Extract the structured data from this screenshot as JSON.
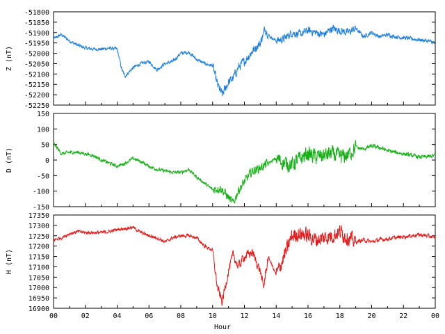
{
  "chart_data": [
    {
      "type": "line",
      "ylabel": "Z (nT)",
      "ylim": [
        -52250,
        -51800
      ],
      "yticks": [
        -51800,
        -51850,
        -51900,
        -51950,
        -52000,
        -52050,
        -52100,
        -52150,
        -52200,
        -52250
      ],
      "xlim": [
        0,
        24
      ],
      "series": [
        {
          "color": "#1e7fe0",
          "x": [
            0,
            0.5,
            1,
            1.5,
            2,
            2.5,
            3,
            3.5,
            4,
            4.3,
            4.5,
            5,
            5.5,
            6,
            6.5,
            7,
            7.5,
            8,
            8.5,
            9,
            9.5,
            10,
            10.3,
            10.6,
            11,
            11.3,
            11.6,
            12,
            12.5,
            13,
            13.3,
            13.6,
            14,
            14.5,
            15,
            15.5,
            16,
            16.5,
            17,
            17.5,
            18,
            18.5,
            19,
            19.5,
            20,
            20.5,
            21,
            21.5,
            22,
            22.5,
            23,
            23.5,
            24
          ],
          "y": [
            -51930,
            -51910,
            -51940,
            -51960,
            -51975,
            -51980,
            -51980,
            -51975,
            -51980,
            -52080,
            -52110,
            -52070,
            -52050,
            -52040,
            -52080,
            -52050,
            -52040,
            -52000,
            -51995,
            -52030,
            -52050,
            -52060,
            -52150,
            -52200,
            -52140,
            -52120,
            -52070,
            -52040,
            -51990,
            -51950,
            -51880,
            -51920,
            -51940,
            -51930,
            -51900,
            -51910,
            -51890,
            -51900,
            -51910,
            -51880,
            -51890,
            -51900,
            -51880,
            -51920,
            -51900,
            -51920,
            -51910,
            -51920,
            -51925,
            -51930,
            -51935,
            -51940,
            -51950
          ]
        }
      ]
    },
    {
      "type": "line",
      "ylabel": "D (nT)",
      "ylim": [
        -150,
        150
      ],
      "yticks": [
        150,
        100,
        50,
        0,
        -50,
        -100,
        -150
      ],
      "xlim": [
        0,
        24
      ],
      "series": [
        {
          "color": "#16b016",
          "x": [
            0,
            0.5,
            1,
            1.5,
            2,
            2.5,
            3,
            3.5,
            4,
            4.5,
            5,
            5.5,
            6,
            6.5,
            7,
            7.5,
            8,
            8.5,
            9,
            9.5,
            10,
            10.5,
            11,
            11.3,
            11.6,
            12,
            12.5,
            13,
            13.5,
            14,
            14.5,
            15,
            15.5,
            16,
            16.5,
            17,
            17.5,
            18,
            18.5,
            19,
            19.5,
            20,
            20.5,
            21,
            21.5,
            22,
            22.5,
            23,
            23.5,
            24
          ],
          "y": [
            55,
            20,
            25,
            25,
            20,
            15,
            0,
            -10,
            -20,
            -10,
            5,
            -5,
            -20,
            -30,
            -35,
            -40,
            -40,
            -30,
            -55,
            -75,
            -95,
            -90,
            -120,
            -140,
            -100,
            -70,
            -35,
            -25,
            -10,
            5,
            -10,
            -15,
            5,
            20,
            10,
            15,
            20,
            10,
            15,
            40,
            35,
            45,
            40,
            30,
            25,
            20,
            15,
            10,
            10,
            15
          ]
        }
      ]
    },
    {
      "type": "line",
      "ylabel": "H (nT)",
      "ylim": [
        16900,
        17350
      ],
      "yticks": [
        17350,
        17300,
        17250,
        17200,
        17150,
        17100,
        17050,
        17000,
        16950,
        16900
      ],
      "xlim": [
        0,
        24
      ],
      "xticks": [
        "00",
        "02",
        "04",
        "06",
        "08",
        "10",
        "12",
        "14",
        "16",
        "18",
        "20",
        "22",
        "00"
      ],
      "xlabel": "Hour",
      "series": [
        {
          "color": "#e81818",
          "x": [
            0,
            0.5,
            1,
            1.5,
            2,
            2.5,
            3,
            3.5,
            4,
            4.5,
            5,
            5.5,
            6,
            6.5,
            7,
            7.5,
            8,
            8.5,
            9,
            9.5,
            10,
            10.3,
            10.6,
            11,
            11.3,
            11.6,
            12,
            12.5,
            13,
            13.2,
            13.5,
            14,
            14.5,
            15,
            15.5,
            16,
            16.5,
            17,
            17.5,
            18,
            18.5,
            19,
            19.5,
            20,
            20.5,
            21,
            21.5,
            22,
            22.5,
            23,
            23.5,
            24
          ],
          "y": [
            17230,
            17240,
            17260,
            17270,
            17265,
            17265,
            17265,
            17270,
            17280,
            17285,
            17290,
            17265,
            17250,
            17240,
            17220,
            17240,
            17250,
            17250,
            17240,
            17200,
            17180,
            17000,
            16930,
            17080,
            17160,
            17100,
            17150,
            17170,
            17080,
            17000,
            17150,
            17060,
            17150,
            17250,
            17260,
            17250,
            17230,
            17240,
            17250,
            17270,
            17240,
            17220,
            17230,
            17220,
            17230,
            17235,
            17240,
            17245,
            17250,
            17255,
            17250,
            17240
          ]
        }
      ]
    }
  ]
}
